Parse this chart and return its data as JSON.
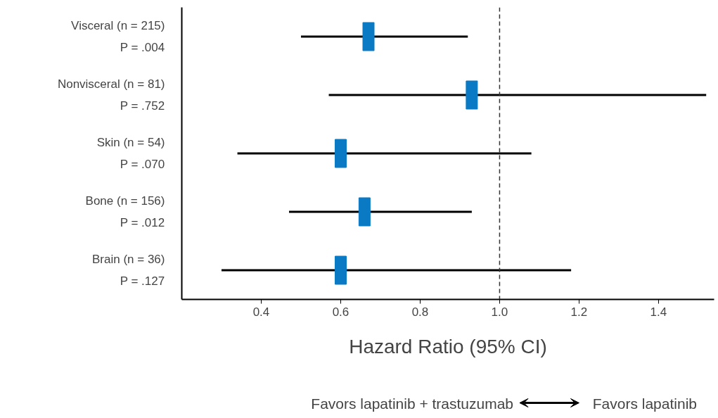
{
  "chart_data": {
    "type": "scatter",
    "orientation": "horizontal",
    "xlabel": "Hazard Ratio (95% CI)",
    "categories": [
      "Visceral (n = 215)\nP = .004",
      "Nonvisceral (n = 81)\nP = .752",
      "Skin (n = 54)\nP = .070",
      "Bone (n = 156)\nP = .012",
      "Brain (n = 36)\nP = .127"
    ],
    "values": [
      0.67,
      0.93,
      0.6,
      0.66,
      0.6
    ],
    "errors": [
      [
        0.5,
        0.92
      ],
      [
        0.57,
        1.52
      ],
      [
        0.34,
        1.08
      ],
      [
        0.47,
        0.93
      ],
      [
        0.3,
        1.18
      ]
    ],
    "color": "#0a7ac4",
    "marker": "square",
    "xlim": [
      0.2,
      1.54
    ],
    "xticks": [
      0.4,
      0.6,
      0.8,
      {
        "value": 1,
        "label": "1.0"
      },
      1.2,
      1.4
    ],
    "ref_lines": [
      {
        "axis": "x",
        "value": 1.0,
        "line_style": "dashed"
      }
    ],
    "annotations": [
      "Favors lapatinib + trastuzumab",
      "Favors lapatinib"
    ],
    "grid": false
  }
}
